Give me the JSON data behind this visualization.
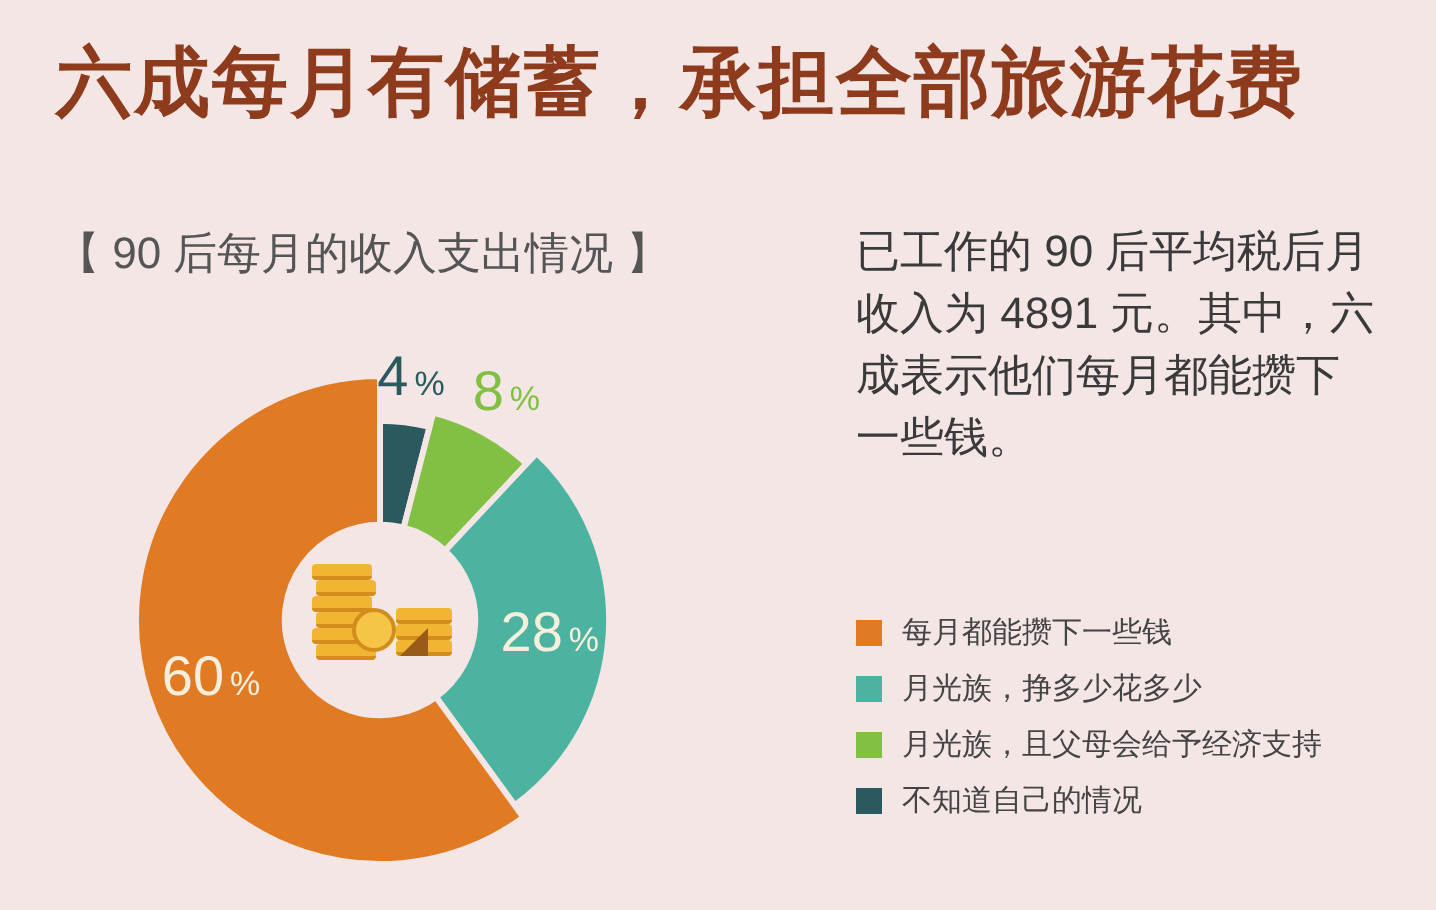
{
  "chart_data": {
    "type": "donut",
    "title": "六成每月有储蓄，承担全部旅游花费",
    "subtitle": "【 90 后每月的收入支出情况 】",
    "annotations": [
      "已工作的 90 后平均税后月收入为 4891 元。其中，六成表示他们每月都能攒下一些钱。"
    ],
    "categories": [
      "每月都能攒下一些钱",
      "月光族，挣多少花多少",
      "月光族，且父母会给予经济支持",
      "不知道自己的情况"
    ],
    "values": [
      60,
      28,
      8,
      4
    ],
    "colors": [
      "#e07b24",
      "#4bb3a0",
      "#82c043",
      "#2b5a5e"
    ],
    "value_labels": [
      "60%",
      "28%",
      "8%",
      "4%"
    ],
    "legend": "right"
  }
}
